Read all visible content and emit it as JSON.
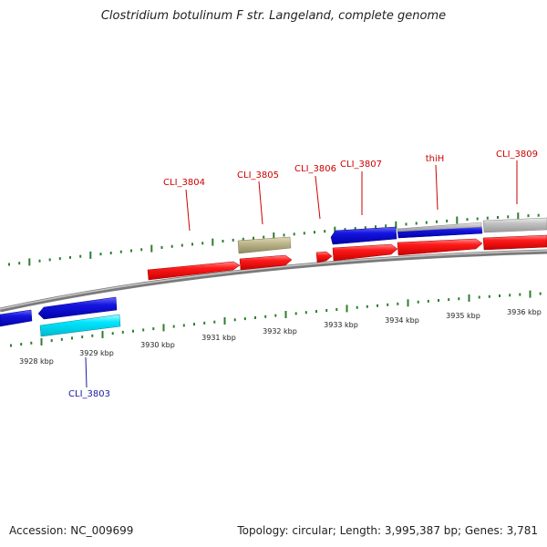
{
  "title": "Clostridium botulinum F str. Langeland, complete genome",
  "footer": {
    "accession": "Accession: NC_009699",
    "summary": "Topology: circular; Length: 3,995,387 bp; Genes: 3,781"
  },
  "colors": {
    "backbone": "#8c8c8c",
    "tick": "#2e7d2e",
    "forward_cds": "#ff1a1a",
    "reverse_cds": "#1515e0",
    "rna": "#00e5ff",
    "pseudo": "#bdb58a",
    "other": "#bbbbbb",
    "label_forward": "#cc0000",
    "label_reverse": "#1a1aa0"
  },
  "scale_labels": [
    "3928 kbp",
    "3929 kbp",
    "3930 kbp",
    "3931 kbp",
    "3932 kbp",
    "3933 kbp",
    "3934 kbp",
    "3935 kbp",
    "3936 kbp"
  ],
  "gene_labels": [
    {
      "name": "CLI_3803",
      "strand": "reverse"
    },
    {
      "name": "CLI_3804",
      "strand": "forward"
    },
    {
      "name": "CLI_3805",
      "strand": "forward"
    },
    {
      "name": "CLI_3806",
      "strand": "forward"
    },
    {
      "name": "CLI_3807",
      "strand": "forward"
    },
    {
      "name": "thiH",
      "strand": "forward"
    },
    {
      "name": "CLI_3809",
      "strand": "forward"
    }
  ]
}
